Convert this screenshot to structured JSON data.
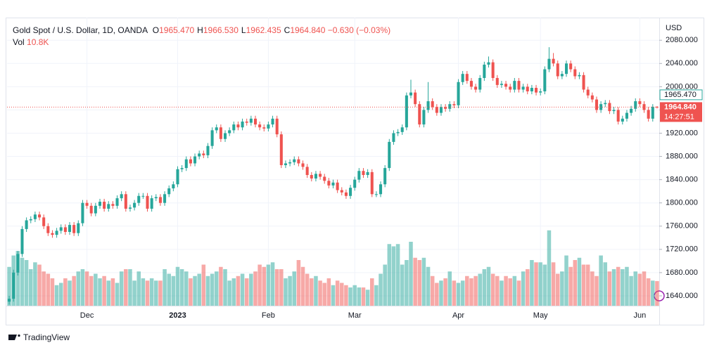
{
  "chart_data": {
    "type": "candlestick",
    "title": "Gold Spot / U.S. Dollar, 1D, OANDA",
    "legend": [
      {
        "key": "O",
        "value": "1965.470"
      },
      {
        "key": "H",
        "value": "1966.530"
      },
      {
        "key": "L",
        "value": "1962.435"
      },
      {
        "key": "C",
        "value": "1964.840"
      }
    ],
    "change": "−0.630 (−0.03%)",
    "volume_name": "Vol",
    "vol_label": "10.8K",
    "currency": "USD",
    "last_price_label": "1964.840",
    "countdown": "14:27:51",
    "prev_close_label": "1965.470",
    "watermark": "TradingView",
    "up_color": "#26a69a",
    "down_color": "#ef5350",
    "grid": true,
    "xlim": [
      -0.5,
      150.5
    ],
    "ylim": [
      1623,
      2119
    ],
    "vol_ylim": [
      0,
      40000
    ],
    "yticks": [
      {
        "value": 1640,
        "label": "1640.000"
      },
      {
        "value": 1680,
        "label": "1680.000"
      },
      {
        "value": 1720,
        "label": "1720.000"
      },
      {
        "value": 1760,
        "label": "1760.000"
      },
      {
        "value": 1800,
        "label": "1800.000"
      },
      {
        "value": 1840,
        "label": "1840.000"
      },
      {
        "value": 1880,
        "label": "1880.000"
      },
      {
        "value": 1920,
        "label": "1920.000"
      },
      {
        "value": 1960,
        "label": "1960.000"
      },
      {
        "value": 2000,
        "label": "2000.000"
      },
      {
        "value": 2040,
        "label": "2040.000"
      },
      {
        "value": 2080,
        "label": "2080.000"
      }
    ],
    "xticks": [
      {
        "value": 18,
        "label": "Dec"
      },
      {
        "value": 39,
        "label": "2023"
      },
      {
        "value": 60,
        "label": "Feb"
      },
      {
        "value": 80,
        "label": "Mar"
      },
      {
        "value": 104,
        "label": "Apr"
      },
      {
        "value": 123,
        "label": "May"
      },
      {
        "value": 146,
        "label": "Jun"
      }
    ],
    "open": [
      1630,
      1635,
      1680,
      1712,
      1755,
      1770,
      1772,
      1780,
      1775,
      1760,
      1748,
      1745,
      1752,
      1758,
      1750,
      1762,
      1748,
      1765,
      1800,
      1795,
      1782,
      1795,
      1802,
      1790,
      1798,
      1795,
      1808,
      1815,
      1790,
      1792,
      1800,
      1812,
      1812,
      1790,
      1808,
      1810,
      1800,
      1815,
      1825,
      1832,
      1858,
      1860,
      1875,
      1868,
      1880,
      1885,
      1882,
      1898,
      1925,
      1930,
      1910,
      1920,
      1925,
      1935,
      1930,
      1940,
      1938,
      1945,
      1935,
      1930,
      1928,
      1935,
      1945,
      1918,
      1865,
      1868,
      1870,
      1875,
      1868,
      1862,
      1848,
      1842,
      1850,
      1845,
      1838,
      1830,
      1835,
      1822,
      1818,
      1812,
      1826,
      1840,
      1855,
      1848,
      1853,
      1815,
      1815,
      1832,
      1860,
      1905,
      1920,
      1922,
      1930,
      1985,
      1990,
      1970,
      1935,
      1960,
      1975,
      1965,
      1955,
      1965,
      1962,
      1970,
      1968,
      2008,
      2022,
      2010,
      2000,
      1995,
      2015,
      2038,
      2042,
      2015,
      2003,
      2005,
      2000,
      1995,
      2010,
      1995,
      2000,
      1992,
      1998,
      1990,
      1992,
      2030,
      2048,
      2040,
      2018,
      2022,
      2040,
      2030,
      2018,
      2020,
      1995,
      1985,
      1978,
      1960,
      1970,
      1972,
      1958,
      1960,
      1940,
      1945,
      1955,
      1962,
      1975,
      1970,
      1960,
      1945,
      1965.47
    ],
    "high": [
      1640,
      1685,
      1717,
      1760,
      1775,
      1777,
      1785,
      1785,
      1780,
      1765,
      1753,
      1757,
      1763,
      1763,
      1767,
      1767,
      1770,
      1805,
      1805,
      1800,
      1800,
      1807,
      1807,
      1803,
      1803,
      1813,
      1820,
      1820,
      1797,
      1805,
      1817,
      1817,
      1817,
      1813,
      1815,
      1815,
      1820,
      1830,
      1837,
      1863,
      1865,
      1880,
      1880,
      1885,
      1890,
      1890,
      1903,
      1930,
      1935,
      1935,
      1925,
      1930,
      1940,
      1940,
      1945,
      1945,
      1950,
      1950,
      1940,
      1935,
      1940,
      1950,
      1950,
      1923,
      1873,
      1875,
      1880,
      1880,
      1873,
      1867,
      1853,
      1855,
      1855,
      1850,
      1843,
      1840,
      1840,
      1827,
      1823,
      1831,
      1845,
      1860,
      1860,
      1858,
      1858,
      1820,
      1837,
      1865,
      1910,
      1925,
      1927,
      1935,
      1990,
      2012,
      1995,
      1975,
      1965,
      2008,
      1980,
      1970,
      1970,
      1970,
      1975,
      1975,
      2013,
      2027,
      2027,
      2015,
      2005,
      2020,
      2043,
      2052,
      2047,
      2020,
      2010,
      2010,
      2005,
      2015,
      2015,
      2005,
      2005,
      2003,
      2003,
      1997,
      2035,
      2068,
      2058,
      2045,
      2027,
      2045,
      2045,
      2035,
      2025,
      2025,
      2000,
      1990,
      1983,
      1975,
      1977,
      1977,
      1965,
      1965,
      1950,
      1960,
      1967,
      1980,
      1980,
      1975,
      1965,
      1970,
      1966.53
    ],
    "low": [
      1625,
      1630,
      1675,
      1707,
      1750,
      1765,
      1767,
      1770,
      1755,
      1743,
      1740,
      1740,
      1747,
      1745,
      1745,
      1743,
      1743,
      1760,
      1790,
      1777,
      1777,
      1790,
      1785,
      1785,
      1790,
      1790,
      1803,
      1785,
      1785,
      1787,
      1795,
      1807,
      1785,
      1785,
      1803,
      1795,
      1795,
      1810,
      1820,
      1827,
      1853,
      1855,
      1863,
      1863,
      1875,
      1877,
      1877,
      1893,
      1920,
      1905,
      1905,
      1915,
      1920,
      1925,
      1925,
      1933,
      1933,
      1930,
      1925,
      1923,
      1923,
      1930,
      1913,
      1860,
      1860,
      1863,
      1865,
      1863,
      1857,
      1843,
      1837,
      1837,
      1840,
      1833,
      1825,
      1825,
      1817,
      1813,
      1807,
      1807,
      1821,
      1835,
      1843,
      1843,
      1810,
      1810,
      1810,
      1827,
      1855,
      1900,
      1915,
      1917,
      1925,
      1980,
      1965,
      1930,
      1930,
      1955,
      1960,
      1950,
      1950,
      1957,
      1957,
      1963,
      1963,
      2003,
      2005,
      1995,
      1990,
      1990,
      2010,
      2033,
      2010,
      1998,
      1998,
      1995,
      1990,
      1990,
      1990,
      1990,
      1987,
      1987,
      1985,
      1985,
      1987,
      2025,
      2035,
      2013,
      2013,
      2017,
      2025,
      2013,
      2013,
      1990,
      1980,
      1973,
      1955,
      1955,
      1965,
      1953,
      1953,
      1935,
      1935,
      1940,
      1950,
      1957,
      1965,
      1955,
      1940,
      1940,
      1962.435
    ],
    "close": [
      1635,
      1680,
      1712,
      1755,
      1770,
      1772,
      1780,
      1775,
      1760,
      1748,
      1745,
      1752,
      1758,
      1750,
      1762,
      1748,
      1765,
      1800,
      1795,
      1782,
      1795,
      1802,
      1790,
      1798,
      1795,
      1808,
      1815,
      1790,
      1792,
      1800,
      1812,
      1812,
      1790,
      1808,
      1810,
      1800,
      1815,
      1825,
      1832,
      1858,
      1860,
      1875,
      1868,
      1880,
      1885,
      1882,
      1898,
      1925,
      1930,
      1910,
      1920,
      1925,
      1935,
      1930,
      1940,
      1938,
      1945,
      1935,
      1930,
      1928,
      1935,
      1945,
      1918,
      1865,
      1868,
      1870,
      1875,
      1868,
      1862,
      1848,
      1842,
      1850,
      1845,
      1838,
      1830,
      1835,
      1822,
      1818,
      1812,
      1826,
      1840,
      1855,
      1848,
      1853,
      1815,
      1815,
      1832,
      1860,
      1905,
      1920,
      1922,
      1930,
      1985,
      1990,
      1970,
      1935,
      1960,
      1975,
      1965,
      1955,
      1965,
      1962,
      1970,
      1968,
      2008,
      2022,
      2010,
      2000,
      1995,
      2015,
      2038,
      2042,
      2015,
      2003,
      2005,
      2000,
      1995,
      2010,
      1995,
      2000,
      1992,
      1998,
      1990,
      1992,
      2030,
      2048,
      2040,
      2018,
      2022,
      2040,
      2030,
      2018,
      2020,
      1995,
      1985,
      1978,
      1960,
      1970,
      1972,
      1958,
      1960,
      1940,
      1945,
      1955,
      1962,
      1975,
      1970,
      1960,
      1945,
      1965.47,
      1964.84
    ],
    "volume": [
      17000,
      22000,
      24000,
      21000,
      20000,
      16000,
      19000,
      18000,
      15000,
      14000,
      12000,
      9000,
      10000,
      12000,
      11000,
      13000,
      15000,
      16000,
      15000,
      13000,
      14000,
      12000,
      13000,
      11000,
      12000,
      10000,
      15000,
      16000,
      16000,
      11000,
      15000,
      12000,
      11000,
      12000,
      11000,
      11000,
      16000,
      14000,
      13000,
      17000,
      16000,
      15000,
      12000,
      13000,
      14000,
      18000,
      13000,
      14000,
      15000,
      17000,
      16000,
      11000,
      12000,
      13000,
      14000,
      12000,
      14000,
      15000,
      18000,
      17000,
      18000,
      19000,
      16000,
      16000,
      12000,
      13000,
      15000,
      20000,
      17000,
      14000,
      12000,
      13000,
      11000,
      10000,
      12000,
      9000,
      11000,
      10000,
      9000,
      8000,
      9000,
      8000,
      8000,
      7000,
      12000,
      9000,
      14000,
      18000,
      27000,
      26000,
      27000,
      18000,
      20000,
      28000,
      21000,
      20000,
      21000,
      17000,
      13000,
      10000,
      11000,
      12000,
      15000,
      11000,
      10000,
      11000,
      13000,
      12000,
      13000,
      14000,
      16000,
      17000,
      14000,
      13000,
      11000,
      13000,
      12000,
      13000,
      11000,
      15000,
      16000,
      20000,
      19000,
      19000,
      18000,
      33000,
      19000,
      14000,
      15000,
      22000,
      17000,
      20000,
      21000,
      18000,
      18000,
      15000,
      13000,
      22000,
      19000,
      15000,
      16000,
      17000,
      16000,
      17000,
      13000,
      15000,
      14000,
      15000,
      12000,
      11000,
      10800
    ]
  }
}
